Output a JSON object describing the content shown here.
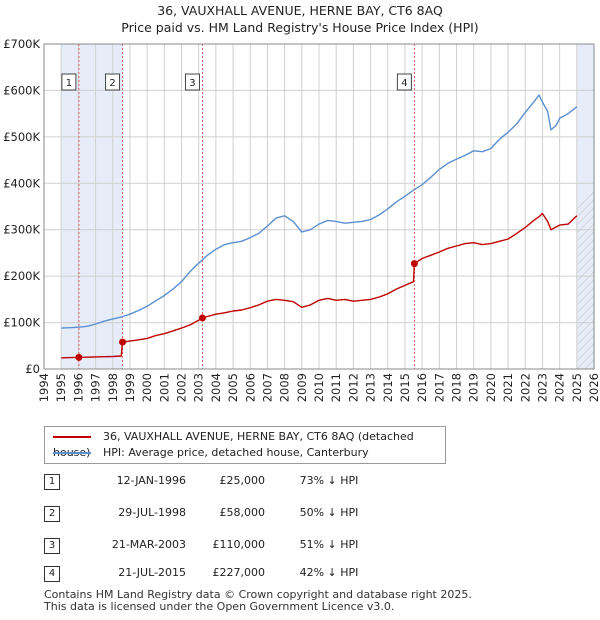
{
  "title_line1": "36, VAUXHALL AVENUE, HERNE BAY, CT6 8AQ",
  "title_line2": "Price paid vs. HM Land Registry's House Price Index (HPI)",
  "colors": {
    "property": "#c00000",
    "hpi": "#5b8fd0",
    "shade": "#e6edf8",
    "marker_line": "#e06060",
    "grid": "#d0d0d0"
  },
  "legend": {
    "property_label": "36, VAUXHALL AVENUE, HERNE BAY, CT6 8AQ (detached house)",
    "hpi_label": "HPI: Average price, detached house, Canterbury"
  },
  "sales": [
    {
      "num": "1",
      "date": "12-JAN-1996",
      "price": "£25,000",
      "hpi": "73% ↓ HPI"
    },
    {
      "num": "2",
      "date": "29-JUL-1998",
      "price": "£58,000",
      "hpi": "50% ↓ HPI"
    },
    {
      "num": "3",
      "date": "21-MAR-2003",
      "price": "£110,000",
      "hpi": "51% ↓ HPI"
    },
    {
      "num": "4",
      "date": "21-JUL-2015",
      "price": "£227,000",
      "hpi": "42% ↓ HPI"
    }
  ],
  "footer_line1": "Contains HM Land Registry data © Crown copyright and database right 2025.",
  "footer_line2": "This data is licensed under the Open Government Licence v3.0.",
  "chart_data": {
    "type": "line",
    "title": "36, VAUXHALL AVENUE, HERNE BAY, CT6 8AQ",
    "subtitle": "Price paid vs. HM Land Registry's House Price Index (HPI)",
    "xlim": [
      1994,
      2026
    ],
    "ylim": [
      0,
      700000
    ],
    "x_ticks": [
      1994,
      1995,
      1996,
      1997,
      1998,
      1999,
      2000,
      2001,
      2002,
      2003,
      2004,
      2005,
      2006,
      2007,
      2008,
      2009,
      2010,
      2011,
      2012,
      2013,
      2014,
      2015,
      2016,
      2017,
      2018,
      2019,
      2020,
      2021,
      2022,
      2023,
      2024,
      2025,
      2026
    ],
    "y_ticks": [
      {
        "value": 0,
        "label": "£0"
      },
      {
        "value": 100000,
        "label": "£100K"
      },
      {
        "value": 200000,
        "label": "£200K"
      },
      {
        "value": 300000,
        "label": "£300K"
      },
      {
        "value": 400000,
        "label": "£400K"
      },
      {
        "value": 500000,
        "label": "£500K"
      },
      {
        "value": 600000,
        "label": "£600K"
      },
      {
        "value": 700000,
        "label": "£700K"
      }
    ],
    "shaded_periods": [
      [
        1995.0,
        1998.6
      ],
      [
        2025.0,
        2026.0
      ]
    ],
    "sale_markers": [
      {
        "label": "1",
        "x": 1996.03,
        "y": 25000
      },
      {
        "label": "2",
        "x": 1998.57,
        "y": 58000
      },
      {
        "label": "3",
        "x": 2003.22,
        "y": 110000
      },
      {
        "label": "4",
        "x": 2015.55,
        "y": 227000
      }
    ],
    "series": [
      {
        "name": "36, VAUXHALL AVENUE, HERNE BAY, CT6 8AQ (detached house)",
        "x": [
          1995.0,
          1995.5,
          1996.0,
          1996.03,
          1996.5,
          1997.0,
          1997.5,
          1998.0,
          1998.5,
          1998.57,
          1999.0,
          1999.5,
          2000.0,
          2000.5,
          2001.0,
          2001.5,
          2002.0,
          2002.5,
          2003.0,
          2003.22,
          2003.5,
          2004.0,
          2004.5,
          2005.0,
          2005.5,
          2006.0,
          2006.5,
          2007.0,
          2007.5,
          2008.0,
          2008.5,
          2009.0,
          2009.5,
          2010.0,
          2010.5,
          2011.0,
          2011.5,
          2012.0,
          2012.5,
          2013.0,
          2013.5,
          2014.0,
          2014.5,
          2015.0,
          2015.5,
          2015.55,
          2016.0,
          2016.5,
          2017.0,
          2017.5,
          2018.0,
          2018.5,
          2019.0,
          2019.5,
          2020.0,
          2020.5,
          2021.0,
          2021.5,
          2022.0,
          2022.5,
          2022.8,
          2023.0,
          2023.3,
          2023.5,
          2024.0,
          2024.5,
          2025.0
        ],
        "y": [
          24000,
          24500,
          25000,
          25000,
          25500,
          26000,
          26500,
          27000,
          28000,
          58000,
          60000,
          63000,
          66000,
          72000,
          76000,
          82000,
          88000,
          95000,
          105000,
          110000,
          113000,
          118000,
          121000,
          125000,
          127000,
          132000,
          138000,
          146000,
          150000,
          148000,
          145000,
          133000,
          138000,
          148000,
          152000,
          148000,
          150000,
          146000,
          148000,
          150000,
          155000,
          162000,
          172000,
          180000,
          188000,
          227000,
          238000,
          245000,
          252000,
          260000,
          265000,
          270000,
          272000,
          268000,
          270000,
          275000,
          280000,
          292000,
          305000,
          320000,
          328000,
          335000,
          318000,
          300000,
          310000,
          312000,
          330000
        ]
      },
      {
        "name": "HPI: Average price, detached house, Canterbury",
        "x": [
          1995.0,
          1995.5,
          1996.0,
          1996.5,
          1997.0,
          1997.5,
          1998.0,
          1998.5,
          1999.0,
          1999.5,
          2000.0,
          2000.5,
          2001.0,
          2001.5,
          2002.0,
          2002.5,
          2003.0,
          2003.5,
          2004.0,
          2004.5,
          2005.0,
          2005.5,
          2006.0,
          2006.5,
          2007.0,
          2007.5,
          2008.0,
          2008.5,
          2009.0,
          2009.5,
          2010.0,
          2010.5,
          2011.0,
          2011.5,
          2012.0,
          2012.5,
          2013.0,
          2013.5,
          2014.0,
          2014.5,
          2015.0,
          2015.5,
          2016.0,
          2016.5,
          2017.0,
          2017.5,
          2018.0,
          2018.5,
          2019.0,
          2019.5,
          2020.0,
          2020.5,
          2021.0,
          2021.5,
          2022.0,
          2022.5,
          2022.8,
          2023.0,
          2023.3,
          2023.5,
          2023.8,
          2024.0,
          2024.5,
          2025.0
        ],
        "y": [
          88000,
          89000,
          90000,
          92000,
          97000,
          103000,
          108000,
          112000,
          118000,
          126000,
          135000,
          147000,
          158000,
          172000,
          188000,
          210000,
          228000,
          245000,
          258000,
          268000,
          272000,
          275000,
          283000,
          292000,
          308000,
          325000,
          330000,
          318000,
          295000,
          300000,
          312000,
          320000,
          318000,
          314000,
          316000,
          318000,
          322000,
          332000,
          345000,
          360000,
          372000,
          385000,
          397000,
          413000,
          430000,
          443000,
          452000,
          460000,
          470000,
          468000,
          475000,
          495000,
          510000,
          528000,
          553000,
          575000,
          590000,
          575000,
          555000,
          515000,
          525000,
          540000,
          550000,
          565000
        ]
      }
    ]
  }
}
